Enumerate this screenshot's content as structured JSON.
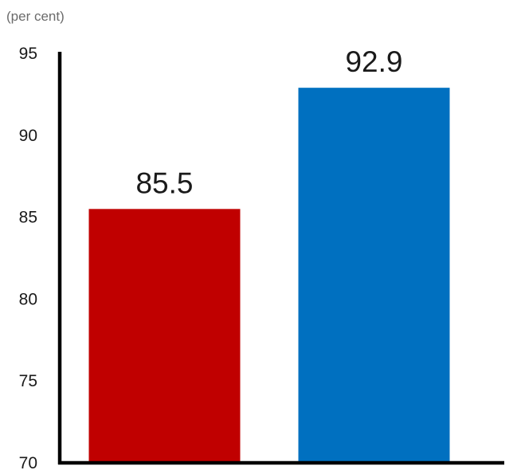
{
  "chart_data": {
    "type": "bar",
    "title": "",
    "xlabel": "",
    "ylabel": "(per cent)",
    "ylim": [
      70,
      95
    ],
    "yticks": [
      70,
      75,
      80,
      85,
      90,
      95
    ],
    "grid": false,
    "legend": "none",
    "categories": [
      "",
      ""
    ],
    "values": [
      85.5,
      92.9
    ],
    "value_labels": [
      "85.5",
      "92.9"
    ],
    "bar_colors": [
      "#c00000",
      "#0070c0"
    ]
  }
}
